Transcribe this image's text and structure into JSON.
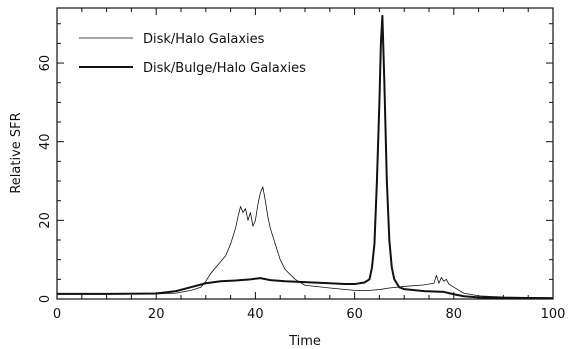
{
  "chart_data": {
    "type": "line",
    "title": "",
    "xlabel": "Time",
    "ylabel": "Relative SFR",
    "xlim": [
      0,
      100
    ],
    "ylim": [
      0,
      74
    ],
    "xticks": [
      0,
      20,
      40,
      60,
      80,
      100
    ],
    "yticks": [
      0,
      20,
      40,
      60
    ],
    "grid": false,
    "legend_position": "top-left",
    "series": [
      {
        "name": "Disk/Halo Galaxies",
        "style": "thin",
        "color": "#111111",
        "points": [
          [
            0,
            1.2
          ],
          [
            10,
            1.2
          ],
          [
            20,
            1.3
          ],
          [
            24,
            1.5
          ],
          [
            27,
            2.2
          ],
          [
            29,
            3.0
          ],
          [
            30,
            4.5
          ],
          [
            31,
            6.5
          ],
          [
            32,
            8.0
          ],
          [
            33,
            9.5
          ],
          [
            34,
            11.0
          ],
          [
            35,
            14.0
          ],
          [
            36,
            18.0
          ],
          [
            36.5,
            21.0
          ],
          [
            37,
            23.5
          ],
          [
            37.5,
            22.0
          ],
          [
            38,
            23.0
          ],
          [
            38.5,
            20.0
          ],
          [
            39,
            22.0
          ],
          [
            39.5,
            18.5
          ],
          [
            40,
            20.0
          ],
          [
            40.5,
            24.0
          ],
          [
            41,
            27.0
          ],
          [
            41.5,
            28.5
          ],
          [
            42,
            25.0
          ],
          [
            42.5,
            21.0
          ],
          [
            43,
            18.0
          ],
          [
            44,
            14.0
          ],
          [
            45,
            10.0
          ],
          [
            46,
            7.5
          ],
          [
            48,
            5.0
          ],
          [
            50,
            3.5
          ],
          [
            55,
            2.8
          ],
          [
            60,
            2.2
          ],
          [
            63,
            2.2
          ],
          [
            65,
            2.4
          ],
          [
            67,
            2.8
          ],
          [
            70,
            3.2
          ],
          [
            74,
            3.6
          ],
          [
            76,
            4.0
          ],
          [
            76.5,
            6.0
          ],
          [
            77,
            4.0
          ],
          [
            77.5,
            5.5
          ],
          [
            78,
            4.5
          ],
          [
            78.5,
            5.0
          ],
          [
            79,
            3.8
          ],
          [
            80,
            3.0
          ],
          [
            82,
            1.5
          ],
          [
            85,
            0.8
          ],
          [
            90,
            0.5
          ],
          [
            100,
            0.3
          ]
        ]
      },
      {
        "name": "Disk/Bulge/Halo Galaxies",
        "style": "thick",
        "color": "#111111",
        "points": [
          [
            0,
            1.3
          ],
          [
            10,
            1.3
          ],
          [
            20,
            1.4
          ],
          [
            24,
            2.0
          ],
          [
            27,
            3.0
          ],
          [
            30,
            4.0
          ],
          [
            33,
            4.5
          ],
          [
            36,
            4.7
          ],
          [
            39,
            5.0
          ],
          [
            41,
            5.3
          ],
          [
            43,
            4.8
          ],
          [
            46,
            4.5
          ],
          [
            50,
            4.3
          ],
          [
            55,
            4.0
          ],
          [
            58,
            3.8
          ],
          [
            60,
            3.8
          ],
          [
            62,
            4.2
          ],
          [
            63,
            5.0
          ],
          [
            63.5,
            8.0
          ],
          [
            64,
            14.0
          ],
          [
            64.5,
            30.0
          ],
          [
            65,
            50.0
          ],
          [
            65.3,
            65.0
          ],
          [
            65.6,
            72.0
          ],
          [
            66,
            55.0
          ],
          [
            66.5,
            30.0
          ],
          [
            67,
            15.0
          ],
          [
            67.5,
            8.0
          ],
          [
            68,
            5.0
          ],
          [
            69,
            3.0
          ],
          [
            70,
            2.5
          ],
          [
            74,
            2.0
          ],
          [
            78,
            1.8
          ],
          [
            80,
            1.2
          ],
          [
            82,
            0.7
          ],
          [
            85,
            0.4
          ],
          [
            90,
            0.3
          ],
          [
            100,
            0.2
          ]
        ]
      }
    ]
  }
}
